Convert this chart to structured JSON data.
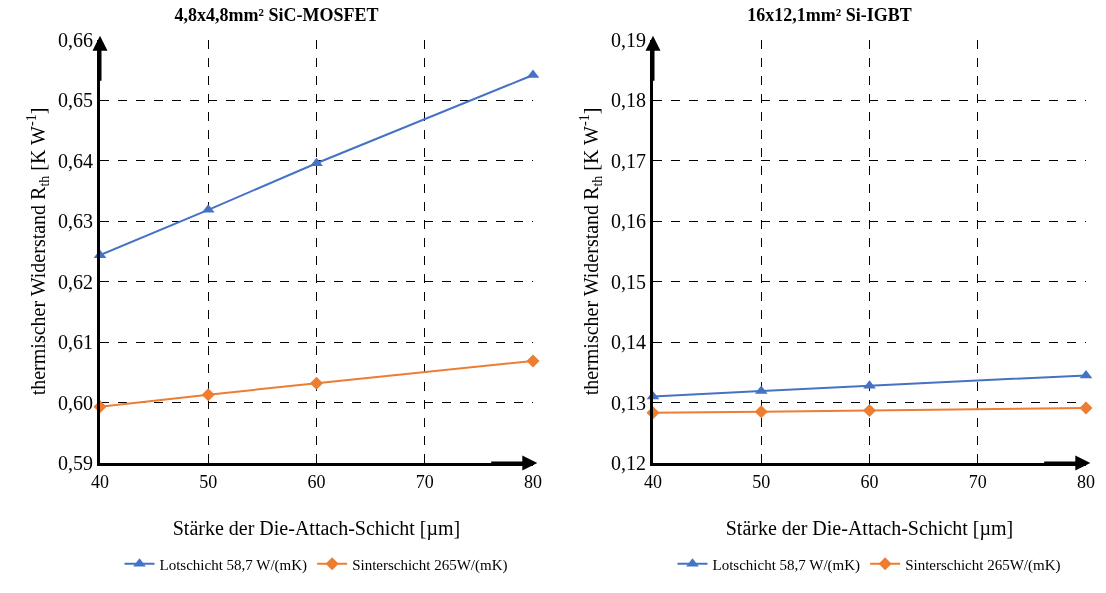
{
  "chart_data": [
    {
      "type": "line",
      "title": "4,8x4,8mm² SiC-MOSFET",
      "xlabel": "Stärke der Die-Attach-Schicht [µm]",
      "ylabel": "thermischer Widerstand R$_{th}$ [K W$^{-1}$]",
      "x": [
        40,
        50,
        60,
        80
      ],
      "series": [
        {
          "name": "Lotschicht 58,7 W/(mK)",
          "color": "#4472c4",
          "marker": "triangle",
          "values": [
            0.6244,
            0.6319,
            0.6396,
            0.6542
          ]
        },
        {
          "name": "Sinterschicht 265W/(mK)",
          "color": "#ed7d31",
          "marker": "diamond",
          "values": [
            0.5993,
            0.6013,
            0.6032,
            0.6069
          ]
        }
      ],
      "xlim": [
        40,
        80
      ],
      "xticks": [
        40,
        50,
        60,
        70,
        80
      ],
      "ylim": [
        0.59,
        0.66
      ],
      "yticks": [
        {
          "value": 0.59,
          "label": "0,59"
        },
        {
          "value": 0.6,
          "label": "0,60"
        },
        {
          "value": 0.61,
          "label": "0,61"
        },
        {
          "value": 0.62,
          "label": "0,62"
        },
        {
          "value": 0.63,
          "label": "0,63"
        },
        {
          "value": 0.64,
          "label": "0,64"
        },
        {
          "value": 0.65,
          "label": "0,65"
        },
        {
          "value": 0.66,
          "label": "0,66"
        }
      ],
      "grid": true,
      "legend": "bottom",
      "line_style": "solid"
    },
    {
      "type": "line",
      "title": "16x12,1mm² Si-IGBT",
      "xlabel": "Stärke der Die-Attach-Schicht [µm]",
      "ylabel": "thermischer Widerstand R$_{th}$ [K W$^{-1}$]",
      "x": [
        40,
        50,
        60,
        80
      ],
      "series": [
        {
          "name": "Lotschicht 58,7 W/(mK)",
          "color": "#4472c4",
          "marker": "triangle",
          "values": [
            0.131,
            0.1319,
            0.1328,
            0.1345
          ]
        },
        {
          "name": "Sinterschicht 265W/(mK)",
          "color": "#ed7d31",
          "marker": "diamond",
          "values": [
            0.1283,
            0.1285,
            0.1287,
            0.1291
          ]
        }
      ],
      "xlim": [
        40,
        80
      ],
      "xticks": [
        40,
        50,
        60,
        70,
        80
      ],
      "ylim": [
        0.12,
        0.19
      ],
      "yticks": [
        {
          "value": 0.12,
          "label": "0,12"
        },
        {
          "value": 0.13,
          "label": "0,13"
        },
        {
          "value": 0.14,
          "label": "0,14"
        },
        {
          "value": 0.15,
          "label": "0,15"
        },
        {
          "value": 0.16,
          "label": "0,16"
        },
        {
          "value": 0.17,
          "label": "0,17"
        },
        {
          "value": 0.18,
          "label": "0,18"
        },
        {
          "value": 0.19,
          "label": "0,19"
        }
      ],
      "grid": true,
      "legend": "bottom",
      "line_style": "solid"
    }
  ]
}
